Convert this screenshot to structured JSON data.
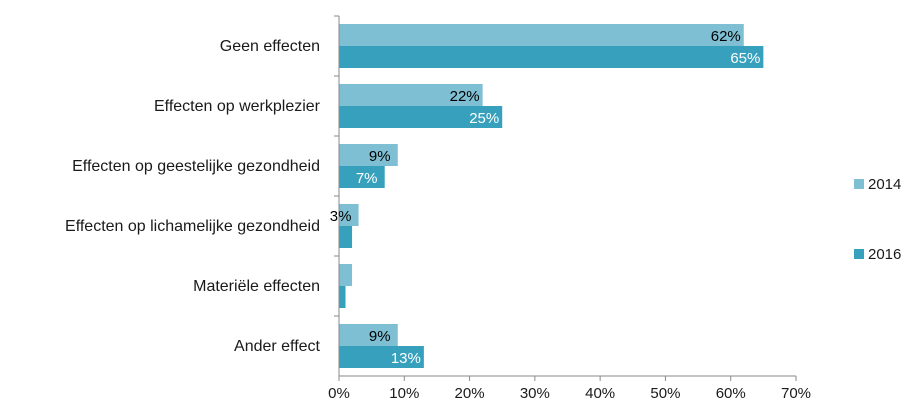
{
  "chart_data": {
    "type": "bar",
    "orientation": "horizontal",
    "categories": [
      "Geen effecten",
      "Effecten op werkplezier",
      "Effecten op geestelijke gezondheid",
      "Effecten op lichamelijke gezondheid",
      "Materiële effecten",
      "Ander effect"
    ],
    "series": [
      {
        "name": "2014",
        "color": "#7fbfd3",
        "values": [
          62,
          22,
          9,
          3,
          2,
          9
        ],
        "labels": [
          "62%",
          "22%",
          "9%",
          "3%",
          "",
          "9%"
        ],
        "label_color": "#000000"
      },
      {
        "name": "2016",
        "color": "#37a1bd",
        "values": [
          65,
          25,
          7,
          2,
          1,
          13
        ],
        "labels": [
          "65%",
          "25%",
          "7%",
          "",
          "",
          "13%"
        ],
        "label_color": "#ffffff"
      }
    ],
    "xlim": [
      0,
      70
    ],
    "xticks": [
      "0%",
      "10%",
      "20%",
      "30%",
      "40%",
      "50%",
      "60%",
      "70%"
    ],
    "grid": false,
    "legend_position": "right"
  }
}
